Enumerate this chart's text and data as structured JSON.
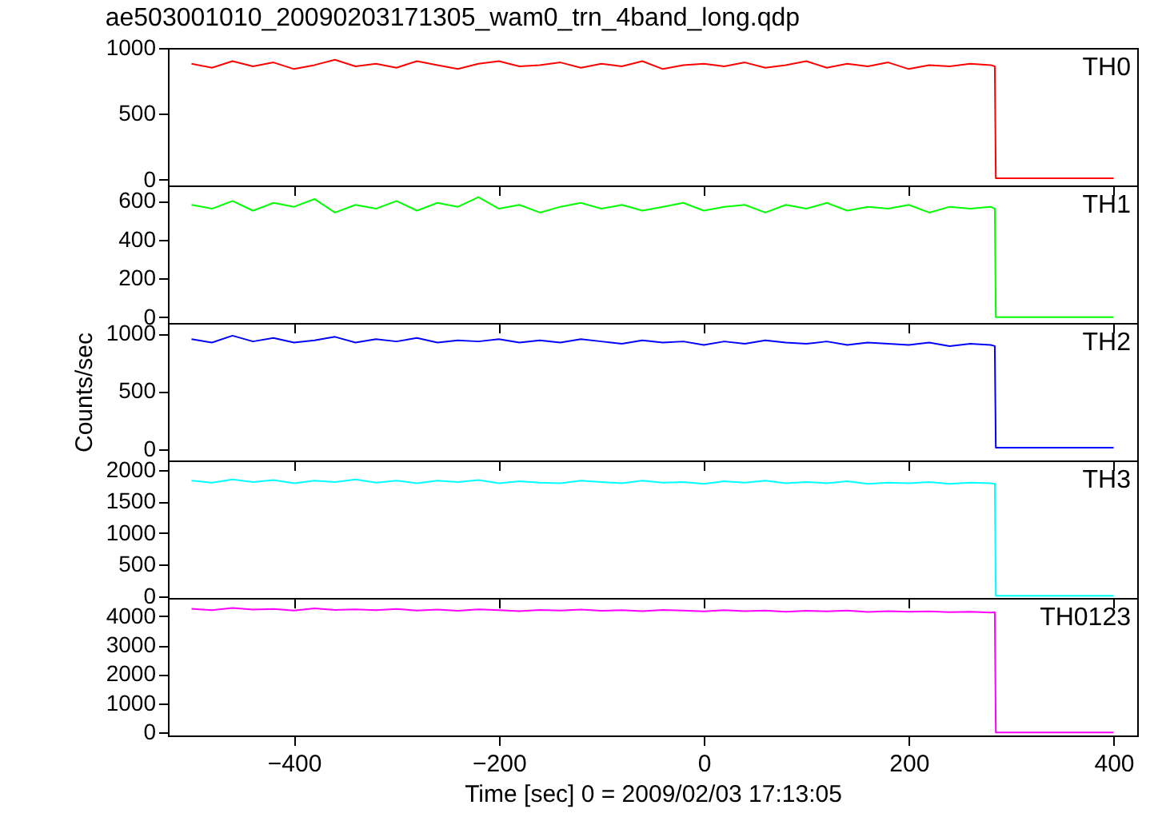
{
  "chart_data": [
    {
      "type": "line",
      "title": "ae503001010_20090203171305_wam0_trn_4band_long.qdp",
      "x": [
        -500,
        -480,
        -460,
        -440,
        -420,
        -400,
        -380,
        -360,
        -340,
        -320,
        -300,
        -280,
        -260,
        -240,
        -220,
        -200,
        -180,
        -160,
        -140,
        -120,
        -100,
        -80,
        -60,
        -40,
        -20,
        0,
        20,
        40,
        60,
        80,
        100,
        120,
        140,
        160,
        180,
        200,
        220,
        240,
        260,
        280,
        284,
        285,
        400
      ],
      "series": [
        {
          "name": "TH0",
          "color": "#ff0000",
          "values": [
            880,
            850,
            900,
            860,
            890,
            840,
            870,
            910,
            860,
            880,
            850,
            900,
            870,
            840,
            880,
            900,
            860,
            870,
            890,
            850,
            880,
            860,
            900,
            840,
            870,
            880,
            860,
            890,
            850,
            870,
            900,
            850,
            880,
            860,
            890,
            840,
            870,
            860,
            880,
            870,
            860,
            10,
            10
          ]
        }
      ],
      "xlim": [
        -523,
        423
      ],
      "xticks": [
        -400,
        -200,
        0,
        200,
        400
      ],
      "ylim": [
        -45,
        1000
      ],
      "yticks": [
        0,
        500,
        1000
      ],
      "tick_labels": "y"
    },
    {
      "type": "line",
      "x": [
        -500,
        -480,
        -460,
        -440,
        -420,
        -400,
        -380,
        -360,
        -340,
        -320,
        -300,
        -280,
        -260,
        -240,
        -220,
        -200,
        -180,
        -160,
        -140,
        -120,
        -100,
        -80,
        -60,
        -40,
        -20,
        0,
        20,
        40,
        60,
        80,
        100,
        120,
        140,
        160,
        180,
        200,
        220,
        240,
        260,
        280,
        284,
        285,
        400
      ],
      "series": [
        {
          "name": "TH1",
          "color": "#00ff00",
          "values": [
            580,
            560,
            600,
            550,
            590,
            570,
            610,
            540,
            580,
            560,
            600,
            550,
            590,
            570,
            620,
            560,
            580,
            540,
            570,
            590,
            560,
            580,
            550,
            570,
            590,
            550,
            570,
            580,
            540,
            580,
            560,
            590,
            550,
            570,
            560,
            580,
            540,
            570,
            560,
            570,
            560,
            0,
            0
          ]
        }
      ],
      "xlim": [
        -523,
        423
      ],
      "xticks": [
        -400,
        -200,
        0,
        200,
        400
      ],
      "ylim": [
        -30,
        680
      ],
      "yticks": [
        0,
        200,
        400,
        600
      ],
      "tick_labels": "y"
    },
    {
      "type": "line",
      "ylabel": "Counts/sec",
      "x": [
        -500,
        -480,
        -460,
        -440,
        -420,
        -400,
        -380,
        -360,
        -340,
        -320,
        -300,
        -280,
        -260,
        -240,
        -220,
        -200,
        -180,
        -160,
        -140,
        -120,
        -100,
        -80,
        -60,
        -40,
        -20,
        0,
        20,
        40,
        60,
        80,
        100,
        120,
        140,
        160,
        180,
        200,
        220,
        240,
        260,
        280,
        284,
        285,
        400
      ],
      "series": [
        {
          "name": "TH2",
          "color": "#0000ff",
          "values": [
            950,
            920,
            980,
            930,
            960,
            920,
            940,
            970,
            920,
            950,
            930,
            960,
            920,
            940,
            930,
            950,
            920,
            940,
            920,
            950,
            930,
            910,
            940,
            920,
            930,
            900,
            930,
            910,
            940,
            920,
            910,
            930,
            900,
            920,
            910,
            900,
            920,
            890,
            910,
            900,
            890,
            10,
            10
          ]
        }
      ],
      "xlim": [
        -523,
        423
      ],
      "xticks": [
        -400,
        -200,
        0,
        200,
        400
      ],
      "ylim": [
        -100,
        1090
      ],
      "yticks": [
        0,
        500,
        1000
      ],
      "tick_labels": "y"
    },
    {
      "type": "line",
      "x": [
        -500,
        -480,
        -460,
        -440,
        -420,
        -400,
        -380,
        -360,
        -340,
        -320,
        -300,
        -280,
        -260,
        -240,
        -220,
        -200,
        -180,
        -160,
        -140,
        -120,
        -100,
        -80,
        -60,
        -40,
        -20,
        0,
        20,
        40,
        60,
        80,
        100,
        120,
        140,
        160,
        180,
        200,
        220,
        240,
        260,
        280,
        284,
        285,
        400
      ],
      "series": [
        {
          "name": "TH3",
          "color": "#00ffff",
          "values": [
            1830,
            1800,
            1850,
            1810,
            1840,
            1790,
            1830,
            1810,
            1850,
            1800,
            1830,
            1790,
            1830,
            1810,
            1840,
            1790,
            1820,
            1800,
            1790,
            1830,
            1810,
            1790,
            1830,
            1800,
            1810,
            1780,
            1820,
            1800,
            1830,
            1790,
            1810,
            1790,
            1820,
            1780,
            1800,
            1790,
            1810,
            1780,
            1800,
            1790,
            1780,
            10,
            10
          ]
        }
      ],
      "xlim": [
        -523,
        423
      ],
      "xticks": [
        -400,
        -200,
        0,
        200,
        400
      ],
      "ylim": [
        -25,
        2150
      ],
      "yticks": [
        0,
        500,
        1000,
        1500,
        2000
      ],
      "tick_labels": "y"
    },
    {
      "type": "line",
      "xlabel": "Time [sec] 0 = 2009/02/03 17:13:05",
      "x": [
        -500,
        -480,
        -460,
        -440,
        -420,
        -400,
        -380,
        -360,
        -340,
        -320,
        -300,
        -280,
        -260,
        -240,
        -220,
        -200,
        -180,
        -160,
        -140,
        -120,
        -100,
        -80,
        -60,
        -40,
        -20,
        0,
        20,
        40,
        60,
        80,
        100,
        120,
        140,
        160,
        180,
        200,
        220,
        240,
        260,
        280,
        284,
        285,
        400
      ],
      "series": [
        {
          "name": "TH0123",
          "color": "#ff00ff",
          "values": [
            4250,
            4200,
            4280,
            4220,
            4240,
            4190,
            4260,
            4210,
            4230,
            4200,
            4240,
            4190,
            4220,
            4180,
            4230,
            4200,
            4170,
            4210,
            4190,
            4220,
            4180,
            4200,
            4170,
            4210,
            4190,
            4160,
            4200,
            4170,
            4190,
            4150,
            4180,
            4160,
            4190,
            4140,
            4170,
            4150,
            4160,
            4130,
            4150,
            4120,
            4130,
            0,
            0
          ]
        }
      ],
      "xlim": [
        -523,
        423
      ],
      "xticks": [
        -400,
        -200,
        0,
        200,
        400
      ],
      "ylim": [
        -100,
        4620
      ],
      "yticks": [
        0,
        1000,
        2000,
        3000,
        4000
      ]
    }
  ]
}
